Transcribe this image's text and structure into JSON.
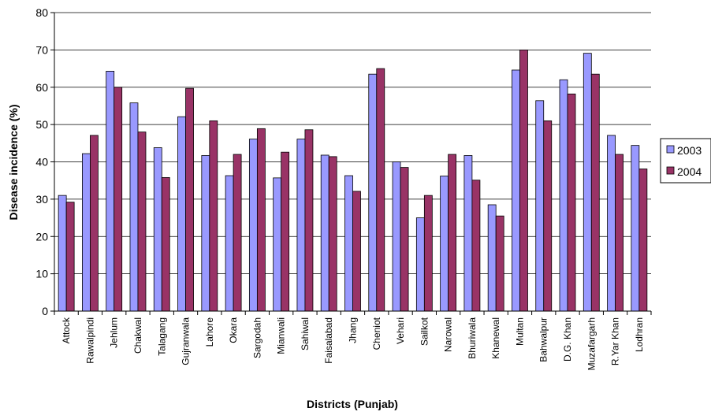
{
  "chart_data": {
    "type": "bar",
    "title": "",
    "xlabel": "Districts (Punjab)",
    "ylabel": "Disease incidence (%)",
    "ylim": [
      0,
      80
    ],
    "yticks": [
      0,
      10,
      20,
      30,
      40,
      50,
      60,
      70,
      80
    ],
    "grid": "horizontal",
    "legend_position": "right",
    "categories": [
      "Attock",
      "Rawalpindi",
      "Jehlum",
      "Chakwal",
      "Talagang",
      "Gujranwala",
      "Lahore",
      "Okara",
      "Sargodah",
      "Mianwali",
      "Sahiwal",
      "Faisalabad",
      "Jhang",
      "Cheniot",
      "Vehari",
      "Sailkot",
      "Narowal",
      "Bhuriwala",
      "Khanewal",
      "Multan",
      "Bahwalpur",
      "D.G. Khan",
      "Muzafargarh",
      "R.Yar Khan",
      "Lodhran"
    ],
    "series": [
      {
        "name": "2003",
        "color": "#9999ff",
        "values": [
          31,
          42.2,
          64.3,
          55.8,
          43.8,
          52.1,
          41.7,
          36.3,
          46.1,
          35.7,
          46.1,
          41.8,
          36.3,
          63.5,
          40,
          25,
          36.2,
          41.7,
          28.5,
          64.6,
          56.4,
          62,
          69.1,
          47.1,
          44.4
        ]
      },
      {
        "name": "2004",
        "color": "#993366",
        "values": [
          29.2,
          47.1,
          60,
          48,
          35.8,
          59.7,
          51,
          42,
          48.9,
          42.6,
          48.6,
          41.4,
          32.1,
          65,
          38.5,
          31,
          42,
          35.1,
          25.5,
          70,
          51,
          58.2,
          63.5,
          42,
          38.1
        ]
      }
    ]
  }
}
